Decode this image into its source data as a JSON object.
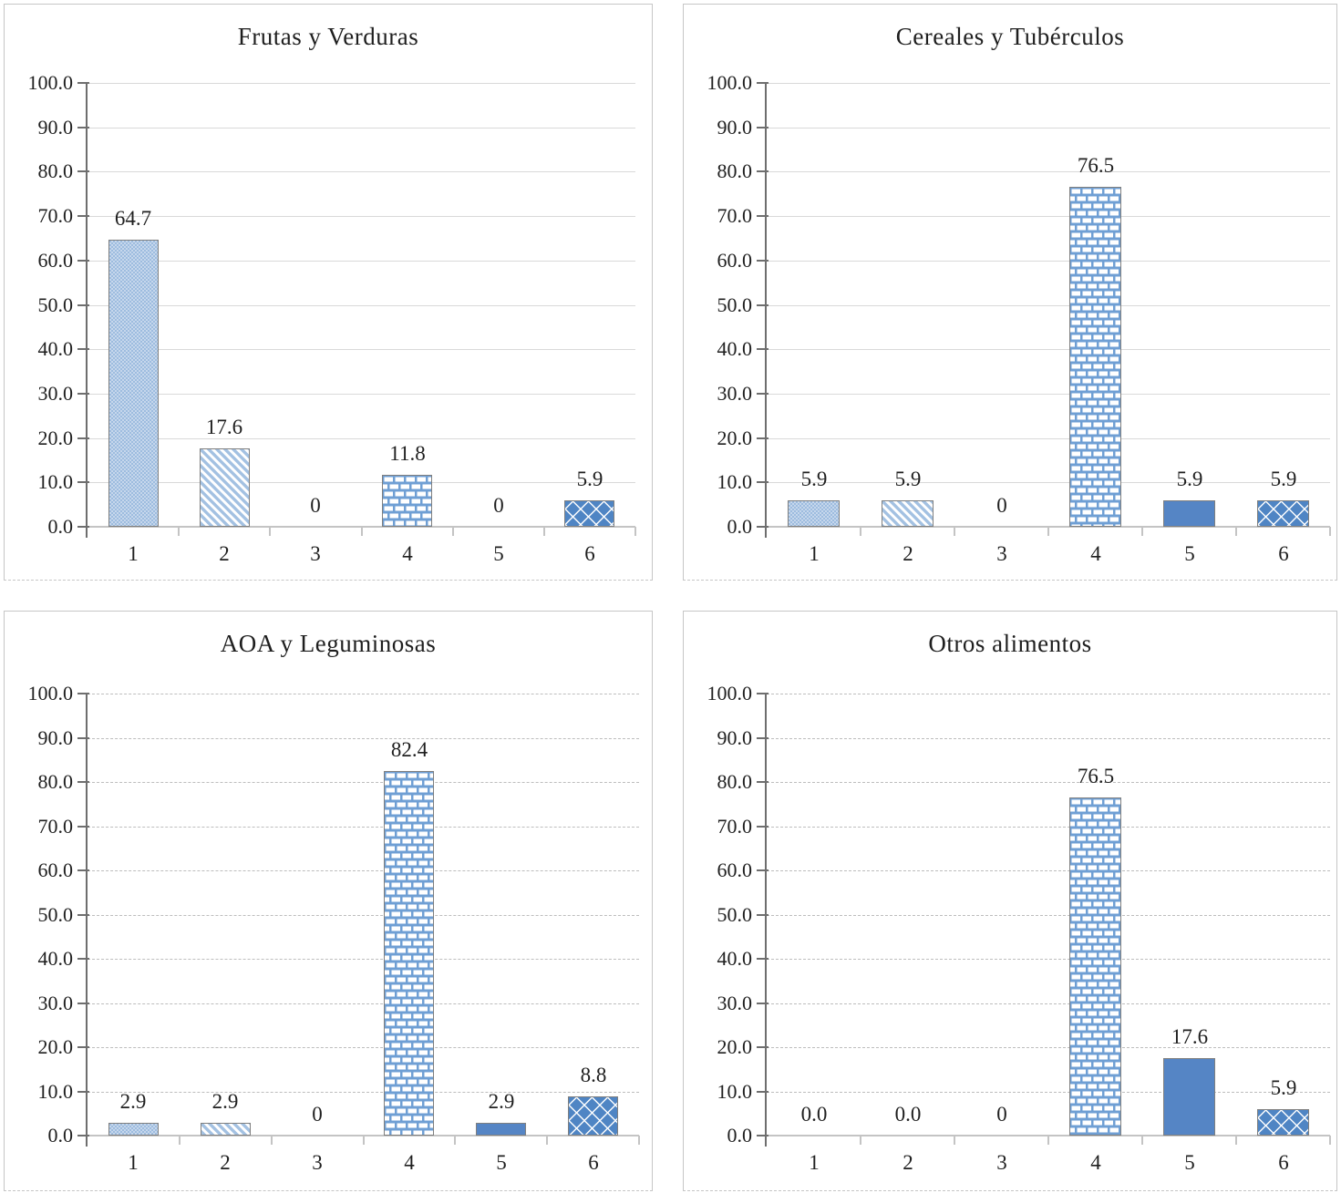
{
  "page": {
    "background": "#ffffff",
    "description_titles": [
      "Frutas y Verduras",
      "Cereales y Tubérculos",
      "AOA y Leguminosas",
      "Otros alimentos"
    ]
  },
  "colors": {
    "bar_solid": "#5585c5",
    "pattern_stripe": "#a3c1e2",
    "brick_mortar": "#6f9fd4",
    "dots_base": "#c6d7ec",
    "dots_dot": "#9dbcdf",
    "diamond": "#4f85c4",
    "bar_border": "#7f7f7f",
    "gridline": "#d9d9d9",
    "gridline_dashed": "#bdbdbd",
    "axis_dark": "#6e6e6e",
    "axis_light": "#c4c4c4",
    "text": "#1f1f1f",
    "panel_border": "#c6c6c6"
  },
  "chart_data": [
    {
      "type": "bar",
      "title": "Frutas y Verduras",
      "categories": [
        "1",
        "2",
        "3",
        "4",
        "5",
        "6"
      ],
      "values": [
        64.7,
        17.6,
        0,
        11.8,
        0,
        5.9
      ],
      "value_labels": [
        "64.7",
        "17.6",
        "0",
        "11.8",
        "0",
        "5.9"
      ],
      "ylim": [
        0,
        100
      ],
      "ytick_labels": [
        "0.0",
        "10.0",
        "20.0",
        "30.0",
        "40.0",
        "50.0",
        "60.0",
        "70.0",
        "80.0",
        "90.0",
        "100.0"
      ],
      "gridline_style": "solid",
      "legend": "none",
      "bar_styles": [
        "dots",
        "diagonal-stripes",
        "none",
        "brick",
        "solid",
        "diamond"
      ]
    },
    {
      "type": "bar",
      "title": "Cereales y Tubérculos",
      "categories": [
        "1",
        "2",
        "3",
        "4",
        "5",
        "6"
      ],
      "values": [
        5.9,
        5.9,
        0,
        76.5,
        5.9,
        5.9
      ],
      "value_labels": [
        "5.9",
        "5.9",
        "0",
        "76.5",
        "5.9",
        "5.9"
      ],
      "ylim": [
        0,
        100
      ],
      "ytick_labels": [
        "0.0",
        "10.0",
        "20.0",
        "30.0",
        "40.0",
        "50.0",
        "60.0",
        "70.0",
        "80.0",
        "90.0",
        "100.0"
      ],
      "gridline_style": "solid",
      "legend": "none",
      "bar_styles": [
        "dots",
        "diagonal-stripes",
        "none",
        "brick",
        "solid",
        "diamond"
      ]
    },
    {
      "type": "bar",
      "title": "AOA y Leguminosas",
      "categories": [
        "1",
        "2",
        "3",
        "4",
        "5",
        "6"
      ],
      "values": [
        2.9,
        2.9,
        0,
        82.4,
        2.9,
        8.8
      ],
      "value_labels": [
        "2.9",
        "2.9",
        "0",
        "82.4",
        "2.9",
        "8.8"
      ],
      "ylim": [
        0,
        100
      ],
      "ytick_labels": [
        "0.0",
        "10.0",
        "20.0",
        "30.0",
        "40.0",
        "50.0",
        "60.0",
        "70.0",
        "80.0",
        "90.0",
        "100.0"
      ],
      "gridline_style": "dashed",
      "legend": "none",
      "bar_styles": [
        "dots",
        "diagonal-stripes",
        "none",
        "brick",
        "solid",
        "diamond"
      ]
    },
    {
      "type": "bar",
      "title": "Otros alimentos",
      "categories": [
        "1",
        "2",
        "3",
        "4",
        "5",
        "6"
      ],
      "values": [
        0,
        0,
        0,
        76.5,
        17.6,
        5.9
      ],
      "value_labels": [
        "0.0",
        "0.0",
        "0",
        "76.5",
        "17.6",
        "5.9"
      ],
      "ylim": [
        0,
        100
      ],
      "ytick_labels": [
        "0.0",
        "10.0",
        "20.0",
        "30.0",
        "40.0",
        "50.0",
        "60.0",
        "70.0",
        "80.0",
        "90.0",
        "100.0"
      ],
      "gridline_style": "dashed",
      "legend": "none",
      "bar_styles": [
        "dots",
        "diagonal-stripes",
        "none",
        "brick",
        "solid",
        "diamond"
      ]
    }
  ]
}
